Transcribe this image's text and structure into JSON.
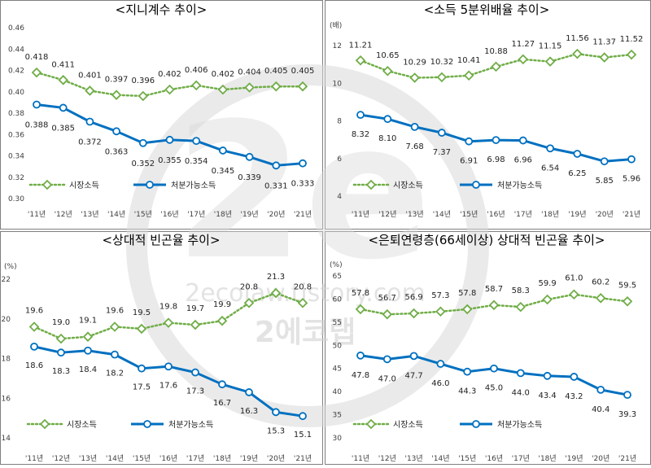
{
  "watermark": {
    "main": "2e",
    "url": "2ecolaw.tistory.com",
    "name": "2에코랩"
  },
  "chart_data": [
    {
      "type": "line",
      "title": "<지니계수 추이>",
      "unit": "",
      "categories": [
        "'11년",
        "'12년",
        "'13년",
        "'14년",
        "'15년",
        "'16년",
        "'17년",
        "'18년",
        "'19년",
        "'20년",
        "'21년"
      ],
      "yticks": [
        "0.46",
        "0.44",
        "0.42",
        "0.40",
        "0.38",
        "0.36",
        "0.34",
        "0.32",
        "0.30"
      ],
      "ylim": [
        0.3,
        0.46
      ],
      "grid": false,
      "legend": "bottom-left",
      "series": [
        {
          "name": "시장소득",
          "values": [
            0.418,
            0.411,
            0.401,
            0.397,
            0.396,
            0.402,
            0.406,
            0.402,
            0.404,
            0.405,
            0.405
          ],
          "labels": [
            "0.418",
            "0.411",
            "0.401",
            "0.397",
            "0.396",
            "0.402",
            "0.406",
            "0.402",
            "0.404",
            "0.405",
            "0.405"
          ],
          "color": "#70ad47",
          "style": "dotted",
          "marker": "diamond"
        },
        {
          "name": "처분가능소득",
          "values": [
            0.388,
            0.385,
            0.372,
            0.363,
            0.352,
            0.355,
            0.354,
            0.345,
            0.339,
            0.331,
            0.333
          ],
          "labels": [
            "0.388",
            "0.385",
            "0.372",
            "0.363",
            "0.352",
            "0.355",
            "0.354",
            "0.345",
            "0.339",
            "0.331",
            "0.333"
          ],
          "color": "#0070c0",
          "style": "solid",
          "marker": "circle"
        }
      ]
    },
    {
      "type": "line",
      "title": "<소득 5분위배율 추이>",
      "unit": "(배)",
      "categories": [
        "'11년",
        "'12년",
        "'13년",
        "'14년",
        "'15년",
        "'16년",
        "'17년",
        "'18년",
        "'19년",
        "'20년",
        "'21년"
      ],
      "yticks": [
        "12",
        "10",
        "8",
        "6",
        "4"
      ],
      "ylim": [
        4,
        12
      ],
      "grid": false,
      "legend": "bottom-left",
      "series": [
        {
          "name": "시장소득",
          "values": [
            11.21,
            10.65,
            10.29,
            10.32,
            10.41,
            10.88,
            11.27,
            11.15,
            11.56,
            11.37,
            11.52
          ],
          "labels": [
            "11.21",
            "10.65",
            "10.29",
            "10.32",
            "10.41",
            "10.88",
            "11.27",
            "11.15",
            "11.56",
            "11.37",
            "11.52"
          ],
          "color": "#70ad47",
          "style": "dotted",
          "marker": "diamond"
        },
        {
          "name": "처분가능소득",
          "values": [
            8.32,
            8.1,
            7.68,
            7.37,
            6.91,
            6.98,
            6.96,
            6.54,
            6.25,
            5.85,
            5.96
          ],
          "labels": [
            "8.32",
            "8.10",
            "7.68",
            "7.37",
            "6.91",
            "6.98",
            "6.96",
            "6.54",
            "6.25",
            "5.85",
            "5.96"
          ],
          "color": "#0070c0",
          "style": "solid",
          "marker": "circle"
        }
      ]
    },
    {
      "type": "line",
      "title": "<상대적 빈곤율 추이>",
      "unit": "(%)",
      "categories": [
        "'11년",
        "'12년",
        "'13년",
        "'14년",
        "'15년",
        "'16년",
        "'17년",
        "'18년",
        "'19년",
        "'20년",
        "'21년"
      ],
      "yticks": [
        "22",
        "20",
        "18",
        "16",
        "14"
      ],
      "ylim": [
        14,
        22
      ],
      "grid": false,
      "legend": "bottom-left",
      "series": [
        {
          "name": "시장소득",
          "values": [
            19.6,
            19.0,
            19.1,
            19.6,
            19.5,
            19.8,
            19.7,
            19.9,
            20.8,
            21.3,
            20.8
          ],
          "labels": [
            "19.6",
            "19.0",
            "19.1",
            "19.6",
            "19.5",
            "19.8",
            "19.7",
            "19.9",
            "20.8",
            "21.3",
            "20.8"
          ],
          "color": "#70ad47",
          "style": "dotted",
          "marker": "diamond"
        },
        {
          "name": "처분가능소득",
          "values": [
            18.6,
            18.3,
            18.4,
            18.2,
            17.5,
            17.6,
            17.3,
            16.7,
            16.3,
            15.3,
            15.1
          ],
          "labels": [
            "18.6",
            "18.3",
            "18.4",
            "18.2",
            "17.5",
            "17.6",
            "17.3",
            "16.7",
            "16.3",
            "15.3",
            "15.1"
          ],
          "color": "#0070c0",
          "style": "solid",
          "marker": "circle"
        }
      ]
    },
    {
      "type": "line",
      "title": "<은퇴연령층(66세이상) 상대적 빈곤율 추이>",
      "unit": "(%)",
      "categories": [
        "'11년",
        "'12년",
        "'13년",
        "'14년",
        "'15년",
        "'16년",
        "'17년",
        "'18년",
        "'19년",
        "'20년",
        "'21년"
      ],
      "yticks": [
        "65",
        "60",
        "55",
        "50",
        "45",
        "40",
        "35",
        "30"
      ],
      "ylim": [
        30,
        65
      ],
      "grid": false,
      "legend": "bottom-left",
      "series": [
        {
          "name": "시장소득",
          "values": [
            57.8,
            56.7,
            56.9,
            57.3,
            57.8,
            58.7,
            58.3,
            59.9,
            61.0,
            60.2,
            59.5
          ],
          "labels": [
            "57.8",
            "56.7",
            "56.9",
            "57.3",
            "57.8",
            "58.7",
            "58.3",
            "59.9",
            "61.0",
            "60.2",
            "59.5"
          ],
          "color": "#70ad47",
          "style": "dotted",
          "marker": "diamond"
        },
        {
          "name": "처분가능소득",
          "values": [
            47.8,
            47.0,
            47.7,
            46.0,
            44.3,
            45.0,
            44.0,
            43.4,
            43.2,
            40.4,
            39.3
          ],
          "labels": [
            "47.8",
            "47.0",
            "47.7",
            "46.0",
            "44.3",
            "45.0",
            "44.0",
            "43.4",
            "43.2",
            "40.4",
            "39.3"
          ],
          "color": "#0070c0",
          "style": "solid",
          "marker": "circle"
        }
      ]
    }
  ]
}
